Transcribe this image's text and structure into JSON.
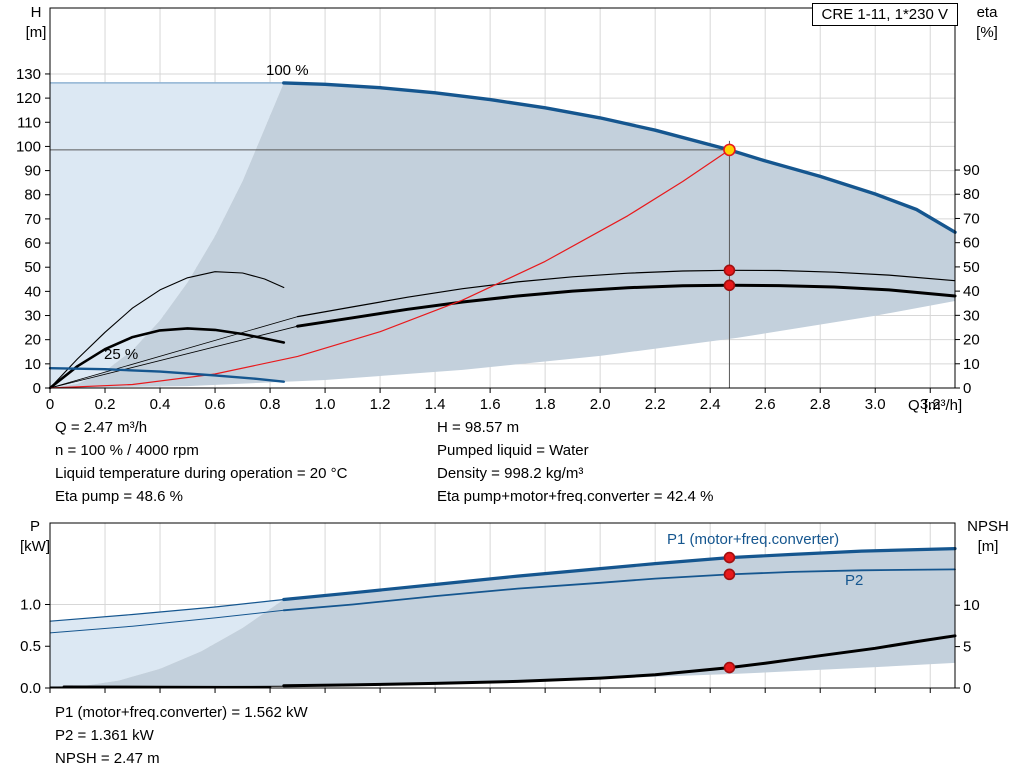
{
  "title_box": "CRE 1-11, 1*230 V",
  "axis_titles": {
    "h": "H",
    "h_unit": "[m]",
    "eta": "eta",
    "eta_unit": "[%]",
    "q": "Q [m³/h]",
    "p": "P",
    "p_unit": "[kW]",
    "npsh": "NPSH",
    "npsh_unit": "[m]"
  },
  "labels": {
    "speed_100": "100 %",
    "speed_25": "25 %",
    "p1": "P1 (motor+freq.converter)",
    "p2": "P2"
  },
  "annotations": {
    "info_left": [
      "Q = 2.47 m³/h",
      "n = 100 % / 4000 rpm",
      "Liquid temperature during operation = 20 °C",
      "Eta pump = 48.6 %"
    ],
    "info_right": [
      "H = 98.57 m",
      "Pumped liquid = Water",
      "Density = 998.2 kg/m³",
      "Eta pump+motor+freq.converter = 42.4 %"
    ],
    "info_bottom": [
      "P1 (motor+freq.converter) = 1.562 kW",
      "P2 = 1.361 kW",
      "NPSH = 2.47 m"
    ]
  },
  "colors": {
    "blue": "#15568f",
    "light_blue_edge": "#8fb3d3",
    "fill_light": "#dce8f3",
    "fill_grey": "#c3d0dc",
    "red": "#e8191c",
    "yellow": "#ffd400",
    "grid": "#d7d7d7",
    "opline": "#5a5a5a",
    "black": "#000000"
  },
  "chart_data": {
    "type": "line",
    "top_chart": {
      "x_axis": {
        "label": "Q [m³/h]",
        "min": 0,
        "max": 3.29,
        "ticks": [
          "0",
          "0.2",
          "0.4",
          "0.6",
          "0.8",
          "1.0",
          "1.2",
          "1.4",
          "1.6",
          "1.8",
          "2.0",
          "2.2",
          "2.4",
          "2.6",
          "2.8",
          "3.0",
          "3.2"
        ]
      },
      "y_left": {
        "label": "H [m]",
        "ticks": [
          "0",
          "10",
          "20",
          "30",
          "40",
          "50",
          "60",
          "70",
          "80",
          "90",
          "100",
          "110",
          "120",
          "130"
        ]
      },
      "y_right": {
        "label": "eta [%]",
        "ticks": [
          "0",
          "10",
          "20",
          "30",
          "40",
          "50",
          "60",
          "70",
          "80",
          "90"
        ]
      },
      "operating_point": {
        "q": 2.47,
        "h": 98.57,
        "eta_pump": 48.6,
        "eta_total": 42.4
      },
      "series": {
        "pump_curve_100": [
          [
            0.85,
            126.3
          ],
          [
            1.0,
            125.7
          ],
          [
            1.2,
            124.3
          ],
          [
            1.4,
            122.2
          ],
          [
            1.6,
            119.4
          ],
          [
            1.8,
            116.0
          ],
          [
            2.0,
            111.8
          ],
          [
            2.2,
            106.7
          ],
          [
            2.47,
            98.57
          ],
          [
            2.6,
            94.0
          ],
          [
            2.8,
            87.6
          ],
          [
            3.0,
            80.3
          ],
          [
            3.15,
            73.9
          ],
          [
            3.29,
            64.5
          ]
        ],
        "pump_curve_25": [
          [
            0,
            8.2
          ],
          [
            0.2,
            7.8
          ],
          [
            0.4,
            6.8
          ],
          [
            0.6,
            5.2
          ],
          [
            0.75,
            3.8
          ],
          [
            0.85,
            2.6
          ]
        ],
        "eta_pump": [
          [
            0.9,
            29.5
          ],
          [
            1.1,
            33.5
          ],
          [
            1.3,
            37.5
          ],
          [
            1.5,
            41.0
          ],
          [
            1.7,
            43.8
          ],
          [
            1.9,
            45.9
          ],
          [
            2.1,
            47.4
          ],
          [
            2.3,
            48.3
          ],
          [
            2.47,
            48.6
          ],
          [
            2.65,
            48.5
          ],
          [
            2.85,
            47.8
          ],
          [
            3.05,
            46.6
          ],
          [
            3.29,
            44.3
          ]
        ],
        "eta_total": [
          [
            0.9,
            25.5
          ],
          [
            1.1,
            29.0
          ],
          [
            1.3,
            32.5
          ],
          [
            1.5,
            35.5
          ],
          [
            1.7,
            38.0
          ],
          [
            1.9,
            40.0
          ],
          [
            2.1,
            41.4
          ],
          [
            2.3,
            42.2
          ],
          [
            2.47,
            42.4
          ],
          [
            2.65,
            42.3
          ],
          [
            2.85,
            41.7
          ],
          [
            3.05,
            40.5
          ],
          [
            3.29,
            38.0
          ]
        ],
        "eta_pump_25": [
          [
            0,
            0
          ],
          [
            0.1,
            12
          ],
          [
            0.2,
            23
          ],
          [
            0.3,
            33
          ],
          [
            0.4,
            40.5
          ],
          [
            0.5,
            45.5
          ],
          [
            0.6,
            48
          ],
          [
            0.7,
            47.5
          ],
          [
            0.78,
            45
          ],
          [
            0.85,
            41.5
          ]
        ],
        "eta_total_25": [
          [
            0,
            0
          ],
          [
            0.1,
            9
          ],
          [
            0.2,
            16
          ],
          [
            0.3,
            21
          ],
          [
            0.4,
            23.8
          ],
          [
            0.5,
            24.6
          ],
          [
            0.6,
            24
          ],
          [
            0.7,
            22.3
          ],
          [
            0.8,
            20
          ],
          [
            0.85,
            18.8
          ]
        ],
        "fan_lines": [
          [
            [
              0,
              0
            ],
            [
              0.9,
              29.5
            ]
          ],
          [
            [
              0,
              0
            ],
            [
              0.9,
              25.5
            ]
          ]
        ],
        "control_curve": [
          [
            0,
            0
          ],
          [
            0.3,
            1.45
          ],
          [
            0.6,
            5.8
          ],
          [
            0.9,
            13.1
          ],
          [
            1.2,
            23.3
          ],
          [
            1.5,
            36.4
          ],
          [
            1.8,
            52.4
          ],
          [
            2.1,
            71.3
          ],
          [
            2.3,
            85.5
          ],
          [
            2.47,
            98.57
          ]
        ],
        "region_light": [
          [
            0,
            0
          ],
          [
            0,
            126.3
          ],
          [
            0.85,
            126.3
          ],
          [
            0.7,
            85.7
          ],
          [
            0.6,
            62.9
          ],
          [
            0.5,
            43.7
          ],
          [
            0.4,
            28.0
          ],
          [
            0.3,
            15.7
          ],
          [
            0.2,
            7.0
          ],
          [
            0.1,
            1.7
          ],
          [
            0,
            0
          ]
        ],
        "region_grey": [
          [
            0,
            0
          ],
          [
            0.1,
            1.7
          ],
          [
            0.2,
            7.0
          ],
          [
            0.3,
            15.7
          ],
          [
            0.4,
            28.0
          ],
          [
            0.5,
            43.7
          ],
          [
            0.6,
            62.9
          ],
          [
            0.7,
            85.7
          ],
          [
            0.85,
            126.3
          ],
          [
            1.0,
            125.7
          ],
          [
            1.2,
            124.3
          ],
          [
            1.4,
            122.2
          ],
          [
            1.6,
            119.4
          ],
          [
            1.8,
            116.0
          ],
          [
            2.0,
            111.8
          ],
          [
            2.2,
            106.7
          ],
          [
            2.47,
            98.57
          ],
          [
            2.6,
            94.0
          ],
          [
            2.8,
            87.6
          ],
          [
            3.0,
            80.3
          ],
          [
            3.15,
            73.9
          ],
          [
            3.29,
            64.5
          ],
          [
            3.29,
            36.0
          ],
          [
            3.0,
            29.9
          ],
          [
            2.5,
            20.8
          ],
          [
            2.0,
            13.3
          ],
          [
            1.5,
            7.5
          ],
          [
            1.0,
            3.3
          ],
          [
            0.5,
            0.8
          ],
          [
            0,
            0
          ]
        ]
      }
    },
    "bottom_chart": {
      "y_left": {
        "label": "P [kW]",
        "ticks": [
          "0.0",
          "0.5",
          "1.0"
        ]
      },
      "y_right": {
        "label": "NPSH [m]",
        "ticks": [
          "0",
          "5",
          "10"
        ]
      },
      "operating_point": {
        "q": 2.47,
        "p1": 1.562,
        "p2": 1.361,
        "npsh": 2.47
      },
      "series": {
        "p1_thin": [
          [
            0,
            0.8
          ],
          [
            0.3,
            0.88
          ],
          [
            0.6,
            0.97
          ],
          [
            0.85,
            1.06
          ]
        ],
        "p1": [
          [
            0.85,
            1.06
          ],
          [
            1.1,
            1.14
          ],
          [
            1.4,
            1.24
          ],
          [
            1.7,
            1.34
          ],
          [
            2.0,
            1.43
          ],
          [
            2.2,
            1.49
          ],
          [
            2.47,
            1.562
          ],
          [
            2.7,
            1.6
          ],
          [
            2.95,
            1.64
          ],
          [
            3.29,
            1.67
          ]
        ],
        "p2_thin": [
          [
            0,
            0.66
          ],
          [
            0.3,
            0.74
          ],
          [
            0.6,
            0.84
          ],
          [
            0.85,
            0.93
          ]
        ],
        "p2": [
          [
            0.85,
            0.93
          ],
          [
            1.1,
            1.0
          ],
          [
            1.4,
            1.1
          ],
          [
            1.7,
            1.19
          ],
          [
            2.0,
            1.26
          ],
          [
            2.2,
            1.31
          ],
          [
            2.47,
            1.361
          ],
          [
            2.7,
            1.39
          ],
          [
            2.95,
            1.41
          ],
          [
            3.29,
            1.42
          ]
        ],
        "npsh_thin": [
          [
            0,
            0.12
          ],
          [
            0.4,
            0.15
          ],
          [
            0.85,
            0.22
          ]
        ],
        "npsh": [
          [
            0.85,
            0.28
          ],
          [
            1.1,
            0.38
          ],
          [
            1.4,
            0.55
          ],
          [
            1.7,
            0.8
          ],
          [
            2.0,
            1.2
          ],
          [
            2.2,
            1.6
          ],
          [
            2.47,
            2.47
          ],
          [
            2.6,
            3.0
          ],
          [
            2.8,
            3.9
          ],
          [
            3.0,
            4.8
          ],
          [
            3.15,
            5.6
          ],
          [
            3.29,
            6.3
          ]
        ],
        "npsh_25": [
          [
            0.05,
            0.16
          ],
          [
            0.4,
            0.12
          ],
          [
            0.8,
            0.08
          ]
        ],
        "region_light": [
          [
            0,
            0
          ],
          [
            0,
            0.8
          ],
          [
            0.3,
            0.88
          ],
          [
            0.6,
            0.97
          ],
          [
            0.85,
            1.06
          ],
          [
            0.7,
            0.72
          ],
          [
            0.55,
            0.44
          ],
          [
            0.4,
            0.23
          ],
          [
            0.25,
            0.09
          ],
          [
            0.1,
            0.015
          ],
          [
            0,
            0
          ]
        ],
        "region_grey": [
          [
            0,
            0
          ],
          [
            0.1,
            0.015
          ],
          [
            0.25,
            0.09
          ],
          [
            0.4,
            0.23
          ],
          [
            0.55,
            0.44
          ],
          [
            0.7,
            0.72
          ],
          [
            0.85,
            1.06
          ],
          [
            1.2,
            1.17
          ],
          [
            1.6,
            1.3
          ],
          [
            2.0,
            1.42
          ],
          [
            2.2,
            1.47
          ],
          [
            2.47,
            1.562
          ],
          [
            2.7,
            1.6
          ],
          [
            3.0,
            1.64
          ],
          [
            3.29,
            1.67
          ],
          [
            3.29,
            0.3
          ],
          [
            3.0,
            0.25
          ],
          [
            2.5,
            0.17
          ],
          [
            2.0,
            0.11
          ],
          [
            1.5,
            0.06
          ],
          [
            1.0,
            0.03
          ],
          [
            0.5,
            0.01
          ],
          [
            0,
            0
          ]
        ]
      }
    }
  }
}
